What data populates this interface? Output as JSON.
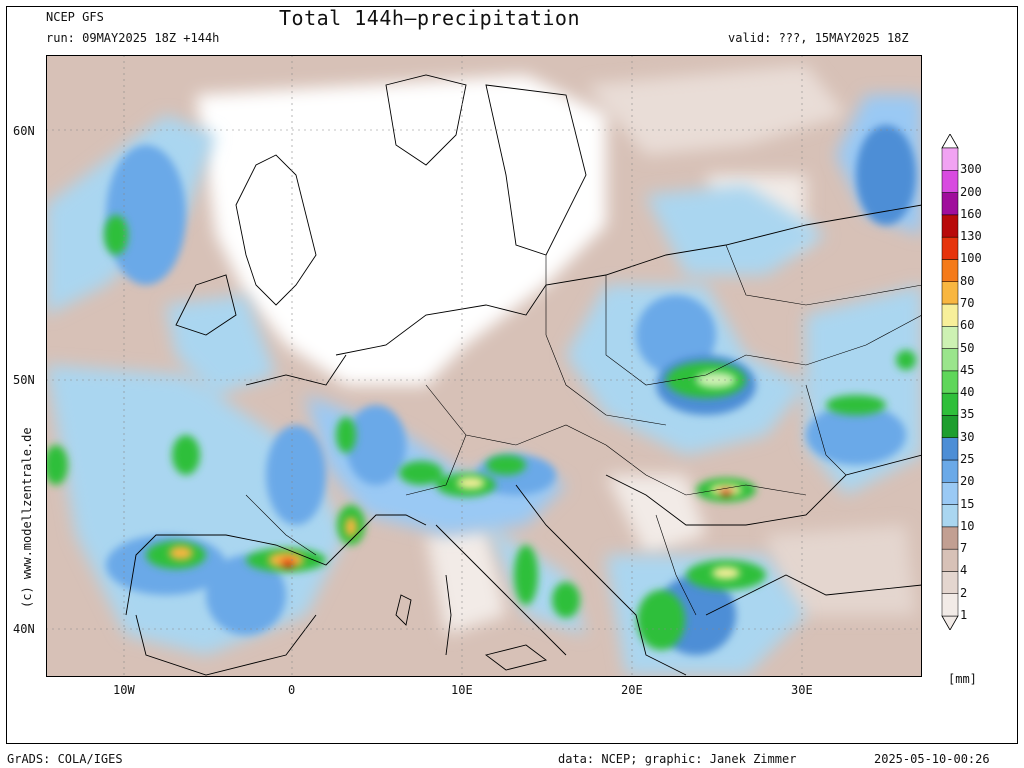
{
  "header": {
    "model": "NCEP GFS",
    "run": "run: 09MAY2025 18Z +144h",
    "title": "Total 144h–precipitation",
    "valid": "valid: ???, 15MAY2025 18Z"
  },
  "map": {
    "lat_labels": [
      "60N",
      "50N",
      "40N"
    ],
    "lon_labels": [
      "10W",
      "0",
      "10E",
      "20E",
      "30E"
    ],
    "credit_vertical": "(c) www.modellzentrale.de"
  },
  "colorbar": {
    "unit": "[mm]",
    "levels": [
      "1",
      "2",
      "4",
      "7",
      "10",
      "15",
      "20",
      "25",
      "30",
      "35",
      "40",
      "45",
      "50",
      "60",
      "70",
      "80",
      "100",
      "130",
      "160",
      "200",
      "300"
    ],
    "colors": [
      "#f2ebe7",
      "#e4d6cf",
      "#d7c1b7",
      "#c29f92",
      "#aad6f0",
      "#9ac9f4",
      "#6aa9e8",
      "#4d8ed6",
      "#1e9e2e",
      "#2fbf3a",
      "#5fd65a",
      "#9ae58c",
      "#cdf1b3",
      "#f7ef9a",
      "#f8b640",
      "#f47a1a",
      "#e6340c",
      "#b80a0a",
      "#a00d9c",
      "#d84be0",
      "#f1a3f2"
    ]
  },
  "footer": {
    "left": "GrADS: COLA/IGES",
    "center": "data: NCEP; graphic: Janek Zimmer",
    "right": "2025-05-10-00:26"
  }
}
